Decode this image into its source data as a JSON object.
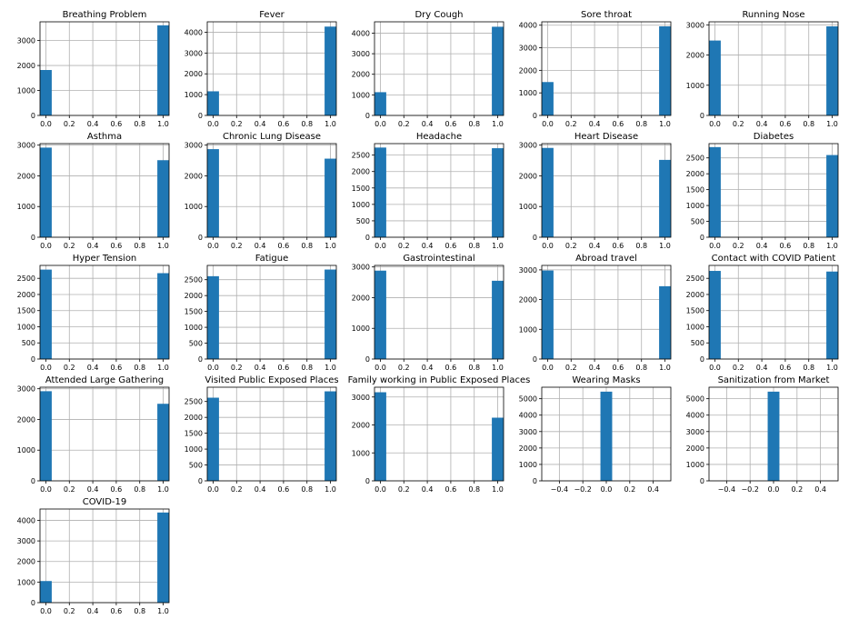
{
  "colors": {
    "bar": "#1f77b4",
    "grid": "#b0b0b0",
    "axis": "#000000"
  },
  "chart_data": [
    {
      "type": "bar",
      "title": "Breathing Problem",
      "xlim": [
        -0.05,
        1.05
      ],
      "xticks": [
        "0.0",
        "0.2",
        "0.4",
        "0.6",
        "0.8",
        "1.0"
      ],
      "ylim": [
        0,
        3750
      ],
      "yticks": [
        "0",
        "1000",
        "2000",
        "3000"
      ],
      "grid": true,
      "bars": [
        {
          "x": 0,
          "value": 1820
        },
        {
          "x": 1,
          "value": 3610
        }
      ]
    },
    {
      "type": "bar",
      "title": "Fever",
      "xlim": [
        -0.05,
        1.05
      ],
      "xticks": [
        "0.0",
        "0.2",
        "0.4",
        "0.6",
        "0.8",
        "1.0"
      ],
      "ylim": [
        0,
        4500
      ],
      "yticks": [
        "0",
        "1000",
        "2000",
        "3000",
        "4000"
      ],
      "grid": true,
      "bars": [
        {
          "x": 0,
          "value": 1160
        },
        {
          "x": 1,
          "value": 4270
        }
      ]
    },
    {
      "type": "bar",
      "title": "Dry Cough",
      "xlim": [
        -0.05,
        1.05
      ],
      "xticks": [
        "0.0",
        "0.2",
        "0.4",
        "0.6",
        "0.8",
        "1.0"
      ],
      "ylim": [
        0,
        4550
      ],
      "yticks": [
        "0",
        "1000",
        "2000",
        "3000",
        "4000"
      ],
      "grid": true,
      "bars": [
        {
          "x": 0,
          "value": 1130
        },
        {
          "x": 1,
          "value": 4310
        }
      ]
    },
    {
      "type": "bar",
      "title": "Sore throat",
      "xlim": [
        -0.05,
        1.05
      ],
      "xticks": [
        "0.0",
        "0.2",
        "0.4",
        "0.6",
        "0.8",
        "1.0"
      ],
      "ylim": [
        0,
        4150
      ],
      "yticks": [
        "0",
        "1000",
        "2000",
        "3000",
        "4000"
      ],
      "grid": true,
      "bars": [
        {
          "x": 0,
          "value": 1480
        },
        {
          "x": 1,
          "value": 3950
        }
      ]
    },
    {
      "type": "bar",
      "title": "Running Nose",
      "xlim": [
        -0.05,
        1.05
      ],
      "xticks": [
        "0.0",
        "0.2",
        "0.4",
        "0.6",
        "0.8",
        "1.0"
      ],
      "ylim": [
        0,
        3100
      ],
      "yticks": [
        "0",
        "1000",
        "2000",
        "3000"
      ],
      "grid": true,
      "bars": [
        {
          "x": 0,
          "value": 2480
        },
        {
          "x": 1,
          "value": 2950
        }
      ]
    },
    {
      "type": "bar",
      "title": "Asthma",
      "xlim": [
        -0.05,
        1.05
      ],
      "xticks": [
        "0.0",
        "0.2",
        "0.4",
        "0.6",
        "0.8",
        "1.0"
      ],
      "ylim": [
        0,
        3050
      ],
      "yticks": [
        "0",
        "1000",
        "2000",
        "3000"
      ],
      "grid": true,
      "bars": [
        {
          "x": 0,
          "value": 2920
        },
        {
          "x": 1,
          "value": 2510
        }
      ]
    },
    {
      "type": "bar",
      "title": "Chronic Lung Disease",
      "xlim": [
        -0.05,
        1.05
      ],
      "xticks": [
        "0.0",
        "0.2",
        "0.4",
        "0.6",
        "0.8",
        "1.0"
      ],
      "ylim": [
        0,
        3050
      ],
      "yticks": [
        "0",
        "1000",
        "2000",
        "3000"
      ],
      "grid": true,
      "bars": [
        {
          "x": 0,
          "value": 2870
        },
        {
          "x": 1,
          "value": 2560
        }
      ]
    },
    {
      "type": "bar",
      "title": "Headache",
      "xlim": [
        -0.05,
        1.05
      ],
      "xticks": [
        "0.0",
        "0.2",
        "0.4",
        "0.6",
        "0.8",
        "1.0"
      ],
      "ylim": [
        0,
        2850
      ],
      "yticks": [
        "0",
        "500",
        "1000",
        "1500",
        "2000",
        "2500"
      ],
      "grid": true,
      "bars": [
        {
          "x": 0,
          "value": 2730
        },
        {
          "x": 1,
          "value": 2710
        }
      ]
    },
    {
      "type": "bar",
      "title": "Heart Disease",
      "xlim": [
        -0.05,
        1.05
      ],
      "xticks": [
        "0.0",
        "0.2",
        "0.4",
        "0.6",
        "0.8",
        "1.0"
      ],
      "ylim": [
        0,
        3050
      ],
      "yticks": [
        "0",
        "1000",
        "2000",
        "3000"
      ],
      "grid": true,
      "bars": [
        {
          "x": 0,
          "value": 2910
        },
        {
          "x": 1,
          "value": 2520
        }
      ]
    },
    {
      "type": "bar",
      "title": "Diabetes",
      "xlim": [
        -0.05,
        1.05
      ],
      "xticks": [
        "0.0",
        "0.2",
        "0.4",
        "0.6",
        "0.8",
        "1.0"
      ],
      "ylim": [
        0,
        2950
      ],
      "yticks": [
        "0",
        "500",
        "1000",
        "1500",
        "2000",
        "2500"
      ],
      "grid": true,
      "bars": [
        {
          "x": 0,
          "value": 2840
        },
        {
          "x": 1,
          "value": 2590
        }
      ]
    },
    {
      "type": "bar",
      "title": "Hyper Tension",
      "xlim": [
        -0.05,
        1.05
      ],
      "xticks": [
        "0.0",
        "0.2",
        "0.4",
        "0.6",
        "0.8",
        "1.0"
      ],
      "ylim": [
        0,
        2900
      ],
      "yticks": [
        "0",
        "500",
        "1000",
        "1500",
        "2000",
        "2500"
      ],
      "grid": true,
      "bars": [
        {
          "x": 0,
          "value": 2770
        },
        {
          "x": 1,
          "value": 2660
        }
      ]
    },
    {
      "type": "bar",
      "title": "Fatigue",
      "xlim": [
        -0.05,
        1.05
      ],
      "xticks": [
        "0.0",
        "0.2",
        "0.4",
        "0.6",
        "0.8",
        "1.0"
      ],
      "ylim": [
        0,
        2950
      ],
      "yticks": [
        "0",
        "500",
        "1000",
        "1500",
        "2000",
        "2500"
      ],
      "grid": true,
      "bars": [
        {
          "x": 0,
          "value": 2610
        },
        {
          "x": 1,
          "value": 2820
        }
      ]
    },
    {
      "type": "bar",
      "title": "Gastrointestinal",
      "xlim": [
        -0.05,
        1.05
      ],
      "xticks": [
        "0.0",
        "0.2",
        "0.4",
        "0.6",
        "0.8",
        "1.0"
      ],
      "ylim": [
        0,
        3050
      ],
      "yticks": [
        "0",
        "1000",
        "2000",
        "3000"
      ],
      "grid": true,
      "bars": [
        {
          "x": 0,
          "value": 2880
        },
        {
          "x": 1,
          "value": 2550
        }
      ]
    },
    {
      "type": "bar",
      "title": "Abroad travel",
      "xlim": [
        -0.05,
        1.05
      ],
      "xticks": [
        "0.0",
        "0.2",
        "0.4",
        "0.6",
        "0.8",
        "1.0"
      ],
      "ylim": [
        0,
        3150
      ],
      "yticks": [
        "0",
        "1000",
        "2000",
        "3000"
      ],
      "grid": true,
      "bars": [
        {
          "x": 0,
          "value": 2980
        },
        {
          "x": 1,
          "value": 2450
        }
      ]
    },
    {
      "type": "bar",
      "title": "Contact with COVID Patient",
      "xlim": [
        -0.05,
        1.05
      ],
      "xticks": [
        "0.0",
        "0.2",
        "0.4",
        "0.6",
        "0.8",
        "1.0"
      ],
      "ylim": [
        0,
        2900
      ],
      "yticks": [
        "0",
        "500",
        "1000",
        "1500",
        "2000",
        "2500"
      ],
      "grid": true,
      "bars": [
        {
          "x": 0,
          "value": 2730
        },
        {
          "x": 1,
          "value": 2710
        }
      ]
    },
    {
      "type": "bar",
      "title": "Attended Large Gathering",
      "xlim": [
        -0.05,
        1.05
      ],
      "xticks": [
        "0.0",
        "0.2",
        "0.4",
        "0.6",
        "0.8",
        "1.0"
      ],
      "ylim": [
        0,
        3050
      ],
      "yticks": [
        "0",
        "1000",
        "2000",
        "3000"
      ],
      "grid": true,
      "bars": [
        {
          "x": 0,
          "value": 2920
        },
        {
          "x": 1,
          "value": 2510
        }
      ]
    },
    {
      "type": "bar",
      "title": "Visited Public Exposed Places",
      "xlim": [
        -0.05,
        1.05
      ],
      "xticks": [
        "0.0",
        "0.2",
        "0.4",
        "0.6",
        "0.8",
        "1.0"
      ],
      "ylim": [
        0,
        2950
      ],
      "yticks": [
        "0",
        "500",
        "1000",
        "1500",
        "2000",
        "2500"
      ],
      "grid": true,
      "bars": [
        {
          "x": 0,
          "value": 2620
        },
        {
          "x": 1,
          "value": 2820
        }
      ]
    },
    {
      "type": "bar",
      "title": "Family working in Public Exposed Places",
      "xlim": [
        -0.05,
        1.05
      ],
      "xticks": [
        "0.0",
        "0.2",
        "0.4",
        "0.6",
        "0.8",
        "1.0"
      ],
      "ylim": [
        0,
        3350
      ],
      "yticks": [
        "0",
        "1000",
        "2000",
        "3000"
      ],
      "grid": true,
      "bars": [
        {
          "x": 0,
          "value": 3170
        },
        {
          "x": 1,
          "value": 2260
        }
      ]
    },
    {
      "type": "bar",
      "title": "Wearing Masks",
      "xlim": [
        -0.55,
        0.55
      ],
      "xticks": [
        "−0.4",
        "−0.2",
        "0.0",
        "0.2",
        "0.4"
      ],
      "ylim": [
        0,
        5700
      ],
      "yticks": [
        "0",
        "1000",
        "2000",
        "3000",
        "4000",
        "5000"
      ],
      "grid": true,
      "bars": [
        {
          "x": 0,
          "value": 5430
        }
      ]
    },
    {
      "type": "bar",
      "title": "Sanitization from Market",
      "xlim": [
        -0.55,
        0.55
      ],
      "xticks": [
        "−0.4",
        "−0.2",
        "0.0",
        "0.2",
        "0.4"
      ],
      "ylim": [
        0,
        5700
      ],
      "yticks": [
        "0",
        "1000",
        "2000",
        "3000",
        "4000",
        "5000"
      ],
      "grid": true,
      "bars": [
        {
          "x": 0,
          "value": 5430
        }
      ]
    },
    {
      "type": "bar",
      "title": "COVID-19",
      "xlim": [
        -0.05,
        1.05
      ],
      "xticks": [
        "0.0",
        "0.2",
        "0.4",
        "0.6",
        "0.8",
        "1.0"
      ],
      "ylim": [
        0,
        4550
      ],
      "yticks": [
        "0",
        "1000",
        "2000",
        "3000",
        "4000"
      ],
      "grid": true,
      "bars": [
        {
          "x": 0,
          "value": 1050
        },
        {
          "x": 1,
          "value": 4380
        }
      ]
    }
  ]
}
